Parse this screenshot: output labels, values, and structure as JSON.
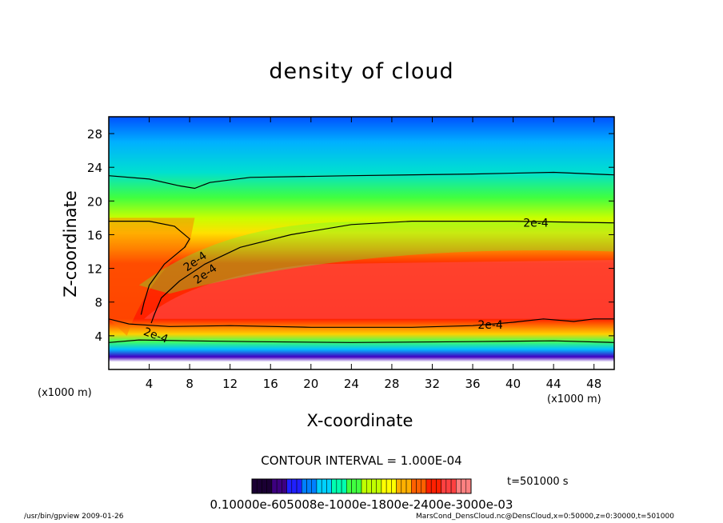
{
  "chart_data": {
    "type": "heatmap",
    "title": "density of cloud",
    "xlabel": "X-coordinate",
    "ylabel": "Z-coordinate",
    "x_unit": "(x1000 m)",
    "y_unit": "(x1000 m)",
    "xlim": [
      0,
      50
    ],
    "ylim": [
      0,
      30
    ],
    "x_ticks": [
      4,
      8,
      12,
      16,
      20,
      24,
      28,
      32,
      36,
      40,
      44,
      48
    ],
    "y_ticks": [
      4,
      8,
      12,
      16,
      20,
      24,
      28
    ],
    "contour_interval": "CONTOUR INTERVAL = 1.000E-04",
    "contour_labels": [
      "2e-4",
      "2e-4",
      "2e-4",
      "2e-4",
      "2e-4"
    ],
    "time": "t=501000 s",
    "colorbar_labels": "0.10000e-605008e-1000e-1800e-2400e-3000e-03",
    "colorbar_colors": [
      "#1a0033",
      "#3d0080",
      "#2020ff",
      "#0080ff",
      "#00d0ff",
      "#00ffb0",
      "#40ff40",
      "#c0ff00",
      "#ffff00",
      "#ffb000",
      "#ff6000",
      "#ff2000",
      "#ff4040",
      "#ff8080"
    ],
    "profile_note": "",
    "footer_left": "/usr/bin/gpview   2009-01-26",
    "footer_right": "MarsCond_DensCloud.nc@DensCloud,x=0:50000,z=0:30000,t=501000"
  }
}
